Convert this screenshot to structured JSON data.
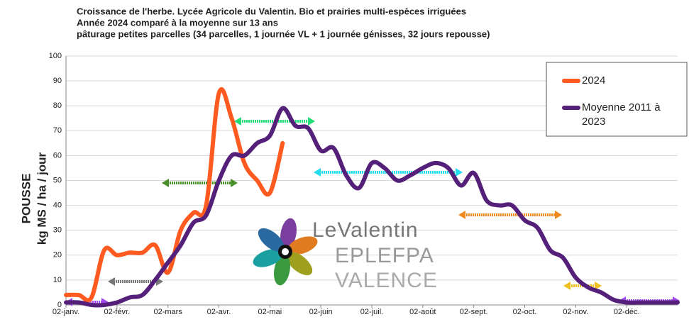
{
  "chart_data": {
    "type": "line",
    "title": [
      "Croissance de l'herbe. Lycée Agricole du Valentin. Bio et prairies multi-espèces irriguées",
      "Année 2024 comparé à la moyenne sur 13 ans",
      "pâturage petites parcelles (34 parcelles, 1 journée VL + 1 journée génisses, 32 jours repousse)"
    ],
    "ylabel": [
      "POUSSE",
      "kg MS / ha / jour"
    ],
    "categories": [
      "02-janv.",
      null,
      null,
      null,
      "02-févr.",
      null,
      null,
      null,
      "02-mars",
      null,
      null,
      null,
      "02-avr.",
      null,
      null,
      null,
      "02-mai",
      null,
      null,
      null,
      "02-juin",
      null,
      null,
      null,
      "02-juil.",
      null,
      null,
      null,
      "02-août",
      null,
      null,
      null,
      "02-sept.",
      null,
      null,
      null,
      "02-oct.",
      null,
      null,
      null,
      "02-nov.",
      null,
      null,
      null,
      "02-déc.",
      null,
      null,
      null,
      null
    ],
    "series": [
      {
        "name": "2024",
        "color": "#ff5a1f",
        "values": [
          4,
          4,
          3,
          22,
          20,
          21,
          21,
          24,
          13,
          30,
          37,
          40,
          85,
          75,
          57,
          50,
          45,
          65,
          null,
          null,
          null,
          null,
          null,
          null,
          null,
          null,
          null,
          null,
          null,
          null,
          null,
          null,
          null,
          null,
          null,
          null,
          null,
          null,
          null,
          null,
          null,
          null,
          null,
          null,
          null,
          null,
          null,
          null,
          null
        ]
      },
      {
        "name": "Moyenne 2011 à 2023",
        "color": "#55207a",
        "values": [
          1,
          1,
          0,
          0,
          1,
          3,
          4,
          10,
          17,
          24,
          33,
          36,
          50,
          60,
          60,
          65,
          68,
          79,
          72,
          71,
          62,
          63,
          52,
          47,
          57,
          55,
          50,
          52,
          55,
          57,
          55,
          48,
          53,
          42,
          40,
          40,
          34,
          31,
          22,
          19,
          11,
          7,
          5,
          2,
          1,
          1,
          1,
          1,
          1
        ]
      }
    ],
    "ylim": [
      0,
      100
    ],
    "yticks": [
      0,
      10,
      20,
      30,
      40,
      50,
      60,
      70,
      80,
      90,
      100
    ],
    "grid": true,
    "legend": "top-right",
    "logo": [
      "LeValentin",
      "EPLEFPA",
      "VALENCE"
    ]
  }
}
